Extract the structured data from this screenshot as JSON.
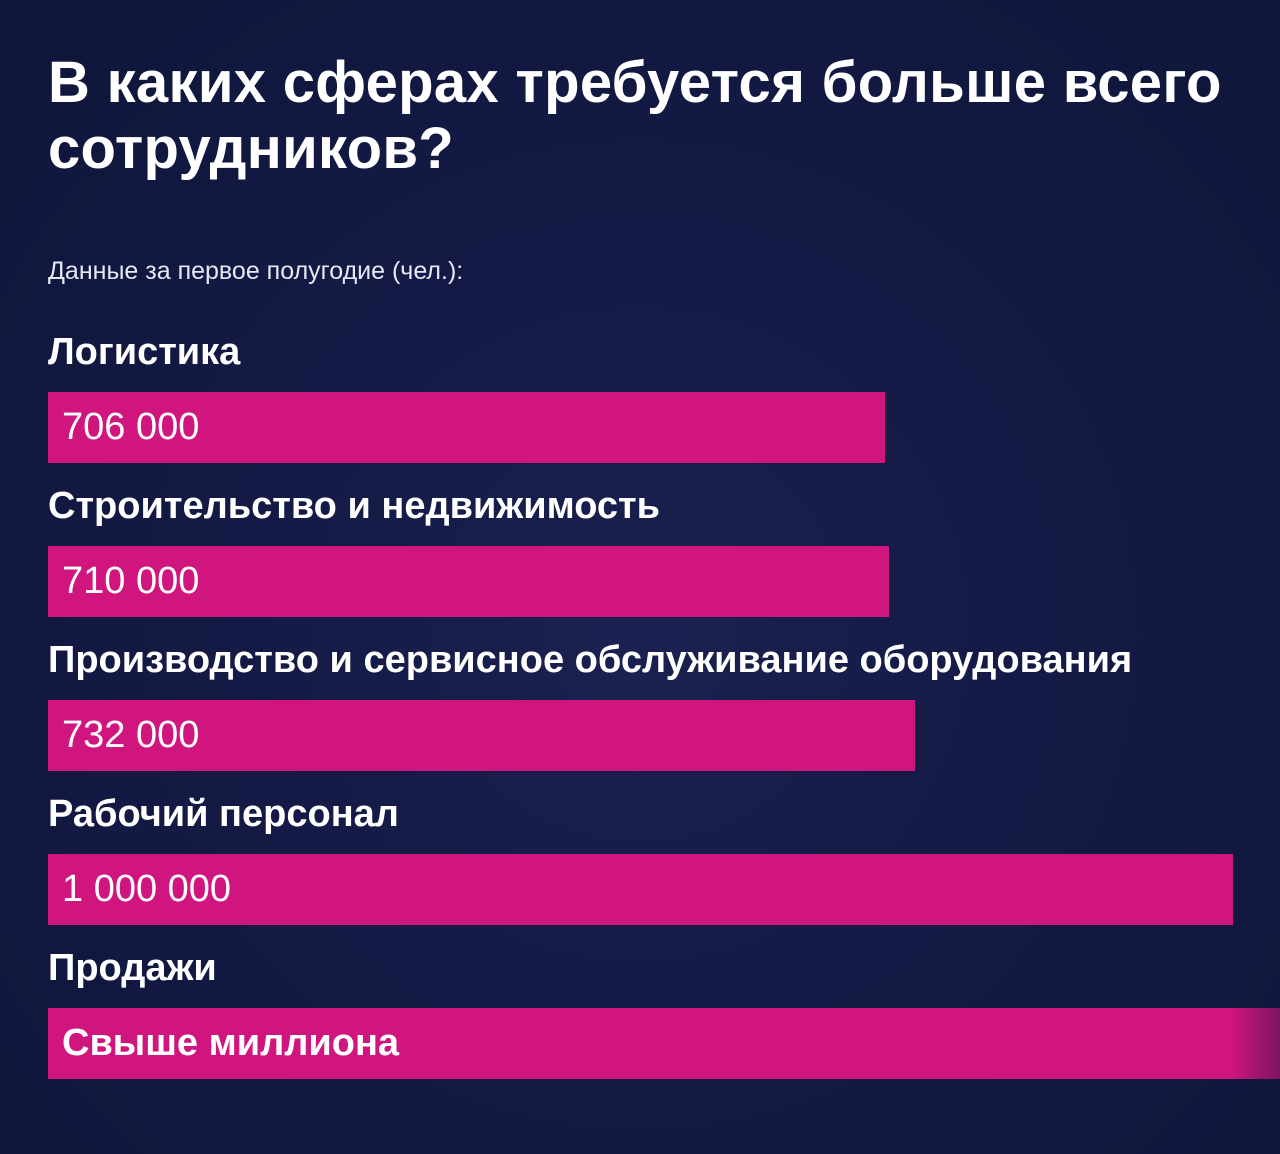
{
  "chart_data": {
    "type": "bar",
    "orientation": "horizontal",
    "title": "В каких сферах требуется больше всего сотрудников?",
    "subtitle": "Данные за первое полугодие (чел.):",
    "categories": [
      "Логистика",
      "Строительство и недвижимость",
      "Производство и сервисное обслуживание оборудования",
      "Рабочий персонал",
      "Продажи"
    ],
    "values": [
      706000,
      710000,
      732000,
      1000000,
      1050000
    ],
    "value_labels": [
      "706 000",
      "710 000",
      "732 000",
      "1 000 000",
      "Свыше миллиона"
    ],
    "grid": false,
    "legend": "none",
    "colors": {
      "bar": "#d0157e",
      "background": "#141a45",
      "text": "#ffffff"
    }
  }
}
